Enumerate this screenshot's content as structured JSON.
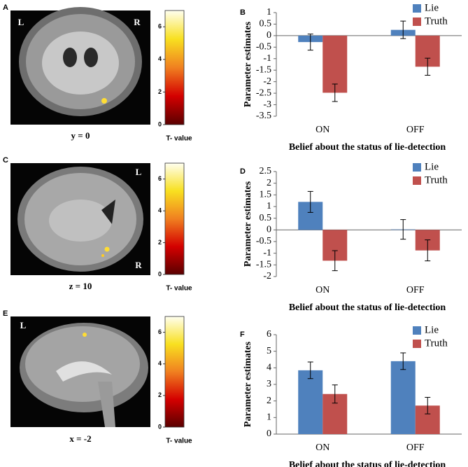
{
  "panels": [
    {
      "letter": "A",
      "labels": [
        "L",
        "R"
      ],
      "caption": "y = 0",
      "colorbar": {
        "label": "T- value",
        "lim": [
          0,
          7
        ],
        "ticks": [
          0,
          2,
          4,
          6
        ]
      }
    },
    {
      "letter": "C",
      "labels": [
        "L",
        "R"
      ],
      "caption": "z = 10",
      "colorbar": {
        "label": "T- value",
        "lim": [
          0,
          7
        ],
        "ticks": [
          0,
          2,
          4,
          6
        ]
      }
    },
    {
      "letter": "E",
      "labels": [
        "L"
      ],
      "caption": "x = -2",
      "colorbar": {
        "label": "T- value",
        "lim": [
          0,
          7
        ],
        "ticks": [
          0,
          2,
          4,
          6
        ]
      }
    }
  ],
  "chart_data": [
    {
      "type": "bar",
      "panel": "B",
      "xlabel": "Belief about the status of lie-detection",
      "ylabel": "Parameter estimates",
      "categories": [
        "ON",
        "OFF"
      ],
      "ylim": [
        -3.5,
        1
      ],
      "yticks": [
        -3.5,
        -3,
        -2.5,
        -2,
        -1.5,
        -1,
        -0.5,
        0,
        0.5,
        1
      ],
      "series": [
        {
          "name": "Lie",
          "color": "#4f81bd",
          "values": [
            -0.28,
            0.25
          ],
          "errors": [
            0.35,
            0.38
          ]
        },
        {
          "name": "Truth",
          "color": "#c0504d",
          "values": [
            -2.48,
            -1.35
          ],
          "errors": [
            0.38,
            0.37
          ]
        }
      ]
    },
    {
      "type": "bar",
      "panel": "D",
      "xlabel": "Belief about the status of lie-detection",
      "ylabel": "Parameter estimates",
      "categories": [
        "ON",
        "OFF"
      ],
      "ylim": [
        -2,
        2.5
      ],
      "yticks": [
        -2,
        -1.5,
        -1,
        -0.5,
        0,
        0.5,
        1,
        1.5,
        2,
        2.5
      ],
      "series": [
        {
          "name": "Lie",
          "color": "#4f81bd",
          "values": [
            1.2,
            0.02
          ],
          "errors": [
            0.45,
            0.42
          ]
        },
        {
          "name": "Truth",
          "color": "#c0504d",
          "values": [
            -1.32,
            -0.88
          ],
          "errors": [
            0.43,
            0.45
          ]
        }
      ]
    },
    {
      "type": "bar",
      "panel": "F",
      "xlabel": "Belief about the status of lie-detection",
      "ylabel": "Parameter estimates",
      "categories": [
        "ON",
        "OFF"
      ],
      "ylim": [
        0,
        6
      ],
      "yticks": [
        0,
        1,
        2,
        3,
        4,
        5,
        6
      ],
      "series": [
        {
          "name": "Lie",
          "color": "#4f81bd",
          "values": [
            3.85,
            4.4
          ],
          "errors": [
            0.5,
            0.5
          ]
        },
        {
          "name": "Truth",
          "color": "#c0504d",
          "values": [
            2.42,
            1.72
          ],
          "errors": [
            0.55,
            0.5
          ]
        }
      ]
    }
  ]
}
